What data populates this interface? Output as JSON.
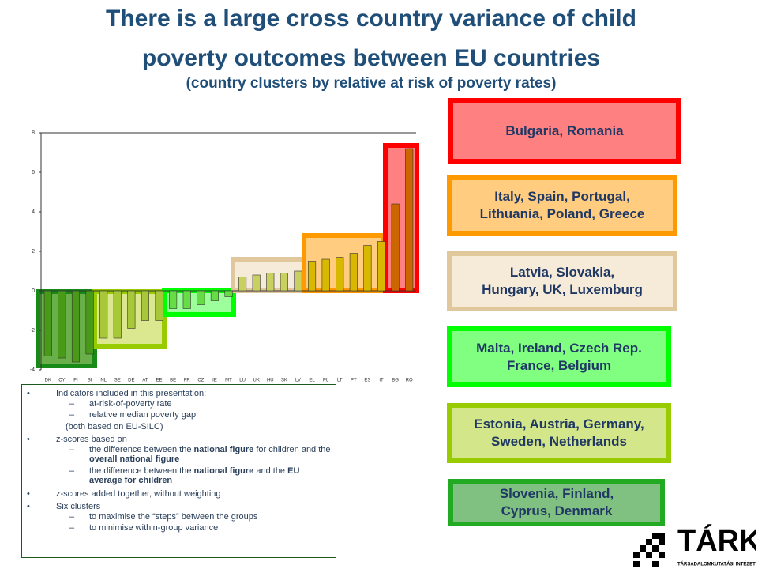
{
  "title_lines": [
    "There is a large cross country variance of child",
    "poverty outcomes between EU countries"
  ],
  "subtitle": "(country clusters by relative at risk of poverty rates)",
  "chart_data": {
    "type": "bar",
    "categories": [
      "DK",
      "CY",
      "FI",
      "SI",
      "NL",
      "SE",
      "DE",
      "AT",
      "EE",
      "BE",
      "FR",
      "CZ",
      "IE",
      "MT",
      "LU",
      "UK",
      "HU",
      "SK",
      "LV",
      "EL",
      "PL",
      "LT",
      "PT",
      "ES",
      "IT",
      "BG",
      "RO"
    ],
    "values": [
      -3.3,
      -3.4,
      -3.6,
      -3.2,
      -2.4,
      -2.4,
      -1.9,
      -1.5,
      -1.5,
      -0.9,
      -0.9,
      -0.7,
      -0.5,
      -0.3,
      0.7,
      0.8,
      0.9,
      0.9,
      1.0,
      1.5,
      1.6,
      1.7,
      1.9,
      2.3,
      2.5,
      4.4,
      7.2
    ],
    "colors": [
      "#4a9a1a",
      "#4a9a1a",
      "#4a9a1a",
      "#4a9a1a",
      "#a8c83a",
      "#a8c83a",
      "#a8c83a",
      "#a8c83a",
      "#a8c83a",
      "#66dd44",
      "#66dd44",
      "#66dd44",
      "#66dd44",
      "#66dd44",
      "#c8d060",
      "#c8d060",
      "#c8d060",
      "#c8d060",
      "#c8d060",
      "#d8b800",
      "#d8b800",
      "#d8b800",
      "#d8b800",
      "#d8b800",
      "#d8b800",
      "#cc6600",
      "#cc6600"
    ],
    "ylim": [
      -4,
      8
    ],
    "yticks": [
      -4,
      -2,
      0,
      2,
      4,
      6,
      8
    ],
    "grid": false
  },
  "clusters": [
    {
      "lines": [
        "Bulgaria, Romania"
      ],
      "fill": "#ff8080",
      "border": "#ff0000"
    },
    {
      "lines": [
        "Italy, Spain, Portugal,",
        "Lithuania, Poland, Greece"
      ],
      "fill": "#ffcc80",
      "border": "#ff9900"
    },
    {
      "lines": [
        "Latvia, Slovakia,",
        "Hungary, UK, Luxemburg"
      ],
      "fill": "#f6ead8",
      "border": "#e0c89c"
    },
    {
      "lines": [
        "Malta, Ireland, Czech Rep.",
        "France, Belgium"
      ],
      "fill": "#80ff80",
      "border": "#00ff00"
    },
    {
      "lines": [
        "Estonia, Austria, Germany,",
        "Sweden, Netherlands"
      ],
      "fill": "#d4e68a",
      "border": "#99cc00"
    },
    {
      "lines": [
        "Slovenia, Finland,",
        "Cyprus, Denmark"
      ],
      "fill": "#80c080",
      "border": "#22aa22"
    }
  ],
  "notes": [
    {
      "text": "Indicators included in this presentation:",
      "sub": [
        {
          "parts": [
            {
              "text": "at-risk-of-poverty rate"
            }
          ]
        },
        {
          "parts": [
            {
              "text": "relative median poverty gap"
            }
          ]
        }
      ],
      "after": "(both based on EU-SILC)"
    },
    {
      "text": "z-scores based on",
      "sub": [
        {
          "parts": [
            {
              "text": "the difference between the "
            },
            {
              "text": "national figure",
              "bold": true
            },
            {
              "text": " for children and the "
            },
            {
              "text": "overall national figure",
              "bold": true
            }
          ]
        },
        {
          "parts": [
            {
              "text": "the difference between the "
            },
            {
              "text": "national figure",
              "bold": true
            },
            {
              "text": " and the "
            },
            {
              "text": "EU average for children",
              "bold": true
            }
          ]
        }
      ]
    },
    {
      "text": "z-scores added together, without weighting"
    },
    {
      "text": "Six clusters",
      "sub": [
        {
          "parts": [
            {
              "text": "to maximise the “steps” between the groups"
            }
          ]
        },
        {
          "parts": [
            {
              "text": "to minimise within-group variance"
            }
          ]
        }
      ]
    }
  ],
  "logo": {
    "name": "TÁRKI",
    "subtitle": "TÁRSADALOMKUTATÁSI INTÉZET RT."
  }
}
